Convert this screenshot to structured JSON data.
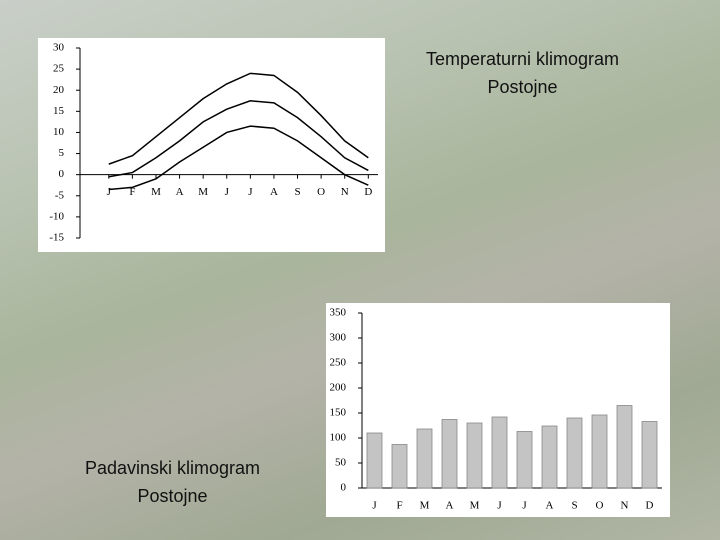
{
  "chart_data": [
    {
      "type": "line",
      "title": "Temperaturni klimogram Postojne",
      "categories": [
        "J",
        "F",
        "M",
        "A",
        "M",
        "J",
        "J",
        "A",
        "S",
        "O",
        "N",
        "D"
      ],
      "series": [
        {
          "color": "#000000",
          "values": [
            2.5,
            4.5,
            9,
            13.5,
            18,
            21.5,
            24,
            23.5,
            19.5,
            14,
            8,
            4
          ]
        },
        {
          "color": "#000000",
          "values": [
            -0.5,
            0.5,
            4,
            8,
            12.5,
            15.5,
            17.5,
            17,
            13.5,
            9,
            4,
            1
          ]
        },
        {
          "color": "#000000",
          "values": [
            -3.5,
            -3,
            -1,
            3,
            6.5,
            10,
            11.5,
            11,
            8,
            4,
            0,
            -2.5
          ]
        }
      ],
      "ylim": [
        -15,
        30
      ],
      "yticks": [
        -15,
        -10,
        -5,
        0,
        5,
        10,
        15,
        20,
        25,
        30
      ]
    },
    {
      "type": "bar",
      "title": "Padavinski klimogram Postojne",
      "categories": [
        "J",
        "F",
        "M",
        "A",
        "M",
        "J",
        "J",
        "A",
        "S",
        "O",
        "N",
        "D"
      ],
      "values": [
        110,
        87,
        118,
        137,
        130,
        142,
        113,
        124,
        140,
        146,
        165,
        133
      ],
      "color": "#c4c4c4",
      "ylim": [
        0,
        350
      ],
      "yticks": [
        0,
        50,
        100,
        150,
        200,
        250,
        300,
        350
      ]
    }
  ]
}
